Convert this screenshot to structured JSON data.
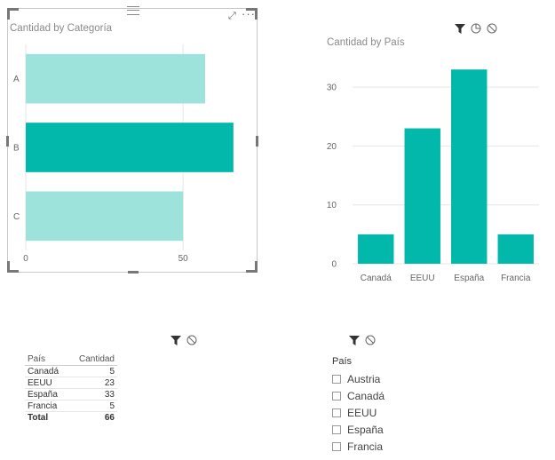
{
  "visual_categoria": {
    "title": "Cantidad by Categoría",
    "chart_data": {
      "type": "bar",
      "orientation": "horizontal",
      "title": "Cantidad by Categoría",
      "categories": [
        "A",
        "B",
        "C"
      ],
      "values": [
        57,
        66,
        50
      ],
      "highlighted": "B",
      "xlim": [
        0,
        70
      ],
      "xticks": [
        0,
        50
      ],
      "colors": {
        "normal": "#9ee3db",
        "highlight": "#01b8aa"
      }
    }
  },
  "visual_pais": {
    "title": "Cantidad by País",
    "chart_data": {
      "type": "bar",
      "title": "Cantidad by País",
      "categories": [
        "Canadá",
        "EEUU",
        "España",
        "Francia"
      ],
      "values": [
        5,
        23,
        33,
        5
      ],
      "ylim": [
        0,
        35
      ],
      "yticks": [
        0,
        10,
        20,
        30
      ],
      "color": "#01b8aa"
    }
  },
  "table": {
    "headers": [
      "País",
      "Cantidad"
    ],
    "rows": [
      [
        "Canadá",
        "5"
      ],
      [
        "EEUU",
        "23"
      ],
      [
        "España",
        "33"
      ],
      [
        "Francia",
        "5"
      ]
    ],
    "total": [
      "Total",
      "66"
    ]
  },
  "slicer": {
    "title": "País",
    "items": [
      "Austria",
      "Canadá",
      "EEUU",
      "España",
      "Francia"
    ]
  },
  "icons": {
    "filter": "filter-icon",
    "no_filter": "no-filter-icon",
    "highlight_mode": "highlight-icon",
    "focus": "focus-mode-icon",
    "more": "more-options-icon"
  }
}
